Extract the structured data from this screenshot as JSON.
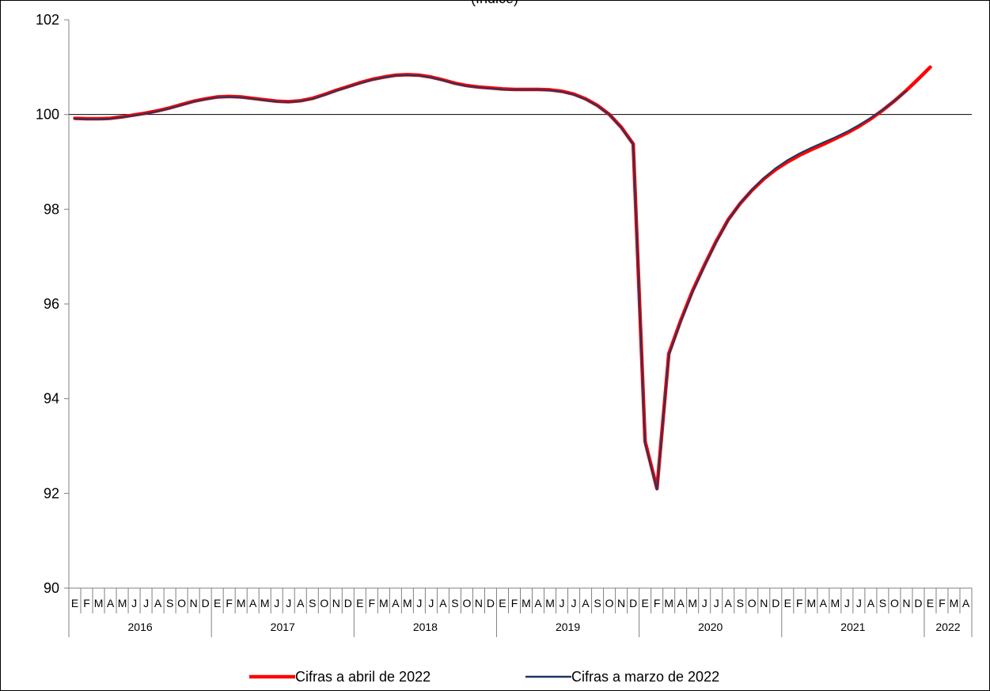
{
  "chart_data": {
    "type": "line",
    "title": "(Índice)",
    "ylim": [
      90,
      102
    ],
    "y_ticks": [
      90,
      92,
      94,
      96,
      98,
      100,
      102
    ],
    "reference_line": 100,
    "grid": false,
    "legend_position": "bottom",
    "month_labels": [
      "E",
      "F",
      "M",
      "A",
      "M",
      "J",
      "J",
      "A",
      "S",
      "O",
      "N",
      "D"
    ],
    "years": [
      "2016",
      "2017",
      "2018",
      "2019",
      "2020",
      "2021",
      "2022"
    ],
    "year_months": [
      12,
      12,
      12,
      12,
      12,
      12,
      4
    ],
    "colors": {
      "abril": "#ff0000",
      "marzo": "#1f3864",
      "reference": "#000000",
      "axis": "#808080"
    },
    "series": [
      {
        "name": "Cifras a abril de 2022",
        "values": [
          99.92,
          99.91,
          99.91,
          99.92,
          99.95,
          99.99,
          100.03,
          100.08,
          100.14,
          100.21,
          100.28,
          100.33,
          100.37,
          100.38,
          100.37,
          100.34,
          100.31,
          100.28,
          100.27,
          100.29,
          100.34,
          100.42,
          100.51,
          100.59,
          100.67,
          100.74,
          100.79,
          100.83,
          100.84,
          100.83,
          100.79,
          100.73,
          100.66,
          100.61,
          100.58,
          100.56,
          100.54,
          100.53,
          100.53,
          100.53,
          100.52,
          100.49,
          100.43,
          100.33,
          100.19,
          100.0,
          99.73,
          99.38,
          93.1,
          92.1,
          94.95,
          95.65,
          96.28,
          96.82,
          97.33,
          97.78,
          98.12,
          98.4,
          98.64,
          98.84,
          99.0,
          99.14,
          99.26,
          99.37,
          99.49,
          99.61,
          99.75,
          99.91,
          100.09,
          100.29,
          100.51,
          100.75,
          101.0
        ]
      },
      {
        "name": "Cifras a marzo de 2022",
        "values": [
          99.91,
          99.9,
          99.9,
          99.91,
          99.94,
          99.98,
          100.02,
          100.07,
          100.13,
          100.2,
          100.27,
          100.32,
          100.36,
          100.37,
          100.36,
          100.33,
          100.3,
          100.27,
          100.26,
          100.28,
          100.33,
          100.41,
          100.5,
          100.58,
          100.66,
          100.73,
          100.78,
          100.82,
          100.83,
          100.82,
          100.78,
          100.72,
          100.65,
          100.6,
          100.57,
          100.55,
          100.53,
          100.52,
          100.52,
          100.52,
          100.51,
          100.48,
          100.42,
          100.32,
          100.18,
          100.0,
          99.72,
          99.37,
          93.05,
          92.08,
          94.92,
          95.62,
          96.25,
          96.8,
          97.31,
          97.77,
          98.12,
          98.41,
          98.66,
          98.87,
          99.04,
          99.18,
          99.3,
          99.41,
          99.52,
          99.64,
          99.78,
          99.93,
          100.1,
          100.29,
          100.5
        ]
      }
    ]
  }
}
